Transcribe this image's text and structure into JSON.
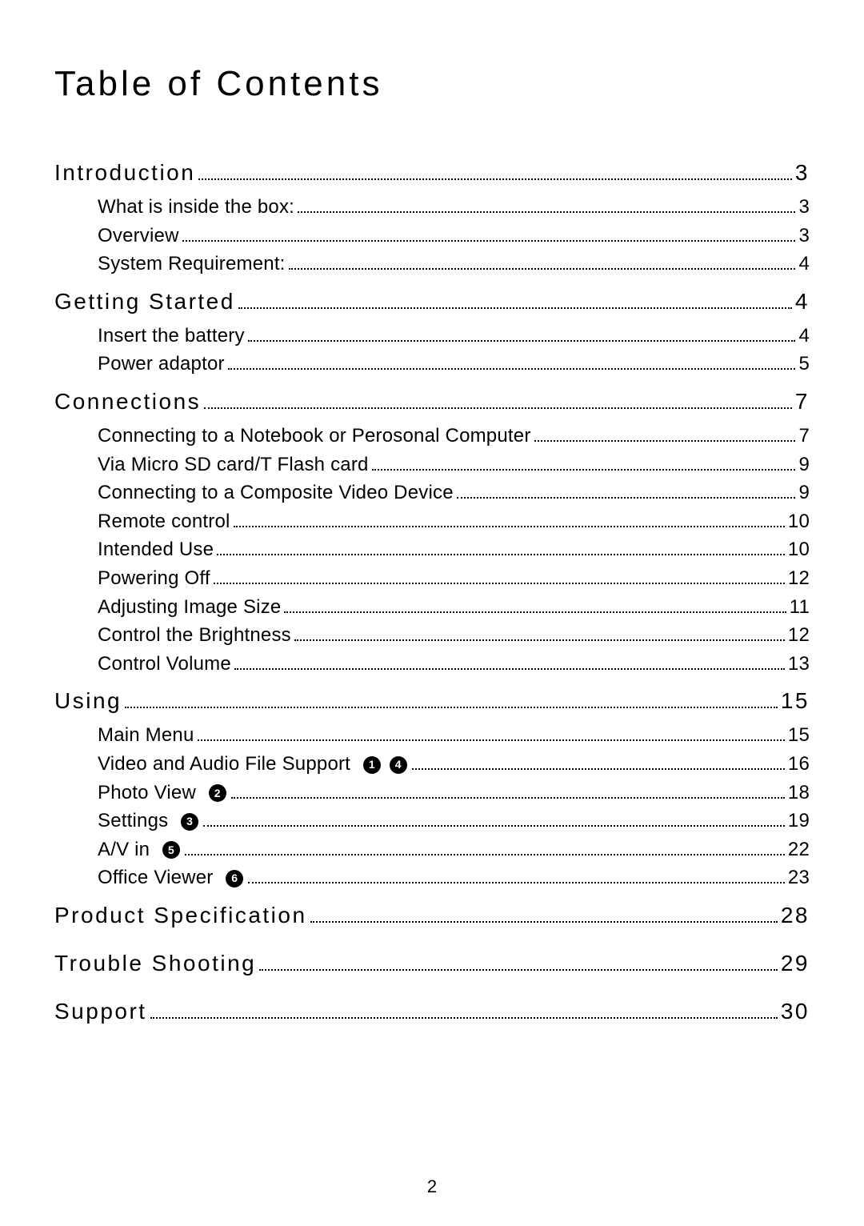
{
  "title": "Table of Contents",
  "pageNumber": "2",
  "style": {
    "bg": "#ffffff",
    "text": "#000000",
    "title_fontsize": 44,
    "title_letterspacing": 4,
    "section_fontsize": 28,
    "section_letterspacing": 2.5,
    "sub_fontsize": 24,
    "dot_color": "#000000",
    "badge_bg": "#000000",
    "badge_fg": "#ffffff"
  },
  "sections": [
    {
      "label": "Introduction",
      "page": "3",
      "items": [
        {
          "label": "What is inside the box:",
          "page": "3"
        },
        {
          "label": "Overview",
          "page": "3"
        },
        {
          "label": "System Requirement:",
          "page": "4"
        }
      ]
    },
    {
      "label": "Getting Started",
      "page": "4",
      "items": [
        {
          "label": "Insert the battery",
          "page": "4"
        },
        {
          "label": "Power adaptor",
          "page": "5"
        }
      ]
    },
    {
      "label": "Connections",
      "page": "7",
      "items": [
        {
          "label": "Connecting to a Notebook or Perosonal Computer",
          "page": "7"
        },
        {
          "label": "Via Micro SD card/T Flash card",
          "page": "9"
        },
        {
          "label": "Connecting to a Composite Video Device",
          "page": "9"
        },
        {
          "label": "Remote control",
          "page": "10"
        },
        {
          "label": "Intended Use",
          "page": "10"
        },
        {
          "label": "Powering Off",
          "page": "12"
        },
        {
          "label": "Adjusting Image Size",
          "page": "11"
        },
        {
          "label": "Control the Brightness",
          "page": "12"
        },
        {
          "label": "Control Volume",
          "page": "13"
        }
      ]
    },
    {
      "label": "Using",
      "page": "15",
      "items": [
        {
          "label": "Main Menu",
          "page": "15"
        },
        {
          "label": "Video and Audio File Support",
          "page": "16",
          "badges": [
            "1",
            "4"
          ]
        },
        {
          "label": "Photo View",
          "page": "18",
          "badges": [
            "2"
          ]
        },
        {
          "label": "Settings",
          "page": "19",
          "badges": [
            "3"
          ]
        },
        {
          "label": "A/V in",
          "page": "22",
          "badges": [
            "5"
          ]
        },
        {
          "label": "Office Viewer",
          "page": "23",
          "badges": [
            "6"
          ]
        }
      ]
    },
    {
      "label": "Product Specification",
      "page": "28",
      "items": []
    },
    {
      "label": "Trouble Shooting",
      "page": "29",
      "items": []
    },
    {
      "label": "Support",
      "page": "30",
      "items": []
    }
  ]
}
